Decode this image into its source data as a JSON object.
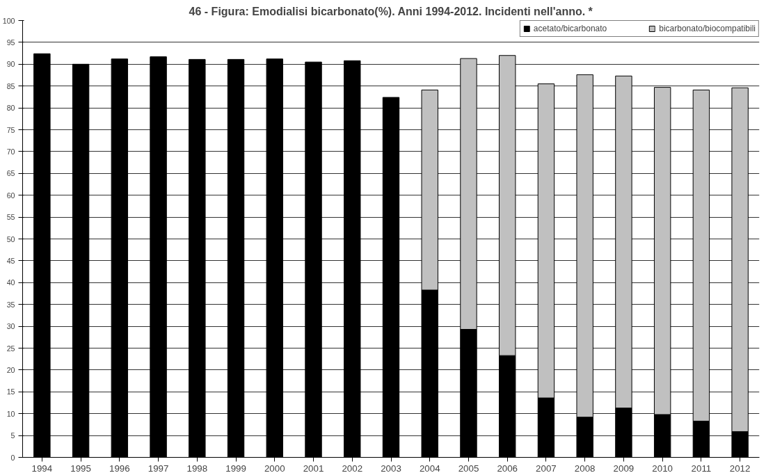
{
  "chart_data": {
    "type": "bar",
    "title": "46 - Figura: Emodialisi bicarbonato(%). Anni 1994-2012. Incidenti nell'anno. *",
    "categories": [
      "1994",
      "1995",
      "1996",
      "1997",
      "1998",
      "1999",
      "2000",
      "2001",
      "2002",
      "2003",
      "2004",
      "2005",
      "2006",
      "2007",
      "2008",
      "2009",
      "2010",
      "2011",
      "2012"
    ],
    "stacked": true,
    "series": [
      {
        "name": "acetato/bicarbonato",
        "color": "#000000",
        "values": [
          92.4,
          90.0,
          91.2,
          91.7,
          91.1,
          91.1,
          91.2,
          90.5,
          90.8,
          82.4,
          38.3,
          29.3,
          23.3,
          13.6,
          9.2,
          11.3,
          9.8,
          8.3,
          5.9
        ]
      },
      {
        "name": "bicarbonato/biocompatibili",
        "color": "#c0c0c0",
        "values": [
          null,
          null,
          null,
          null,
          null,
          null,
          null,
          null,
          null,
          null,
          45.8,
          62.0,
          68.7,
          71.9,
          78.4,
          76.0,
          74.9,
          75.8,
          78.7
        ]
      }
    ],
    "ylim": [
      0,
      100
    ],
    "yticks": [
      0,
      5,
      10,
      15,
      20,
      25,
      30,
      35,
      40,
      45,
      50,
      55,
      60,
      65,
      70,
      75,
      80,
      85,
      90,
      95,
      100
    ],
    "grid": "y",
    "legend": "top right"
  }
}
